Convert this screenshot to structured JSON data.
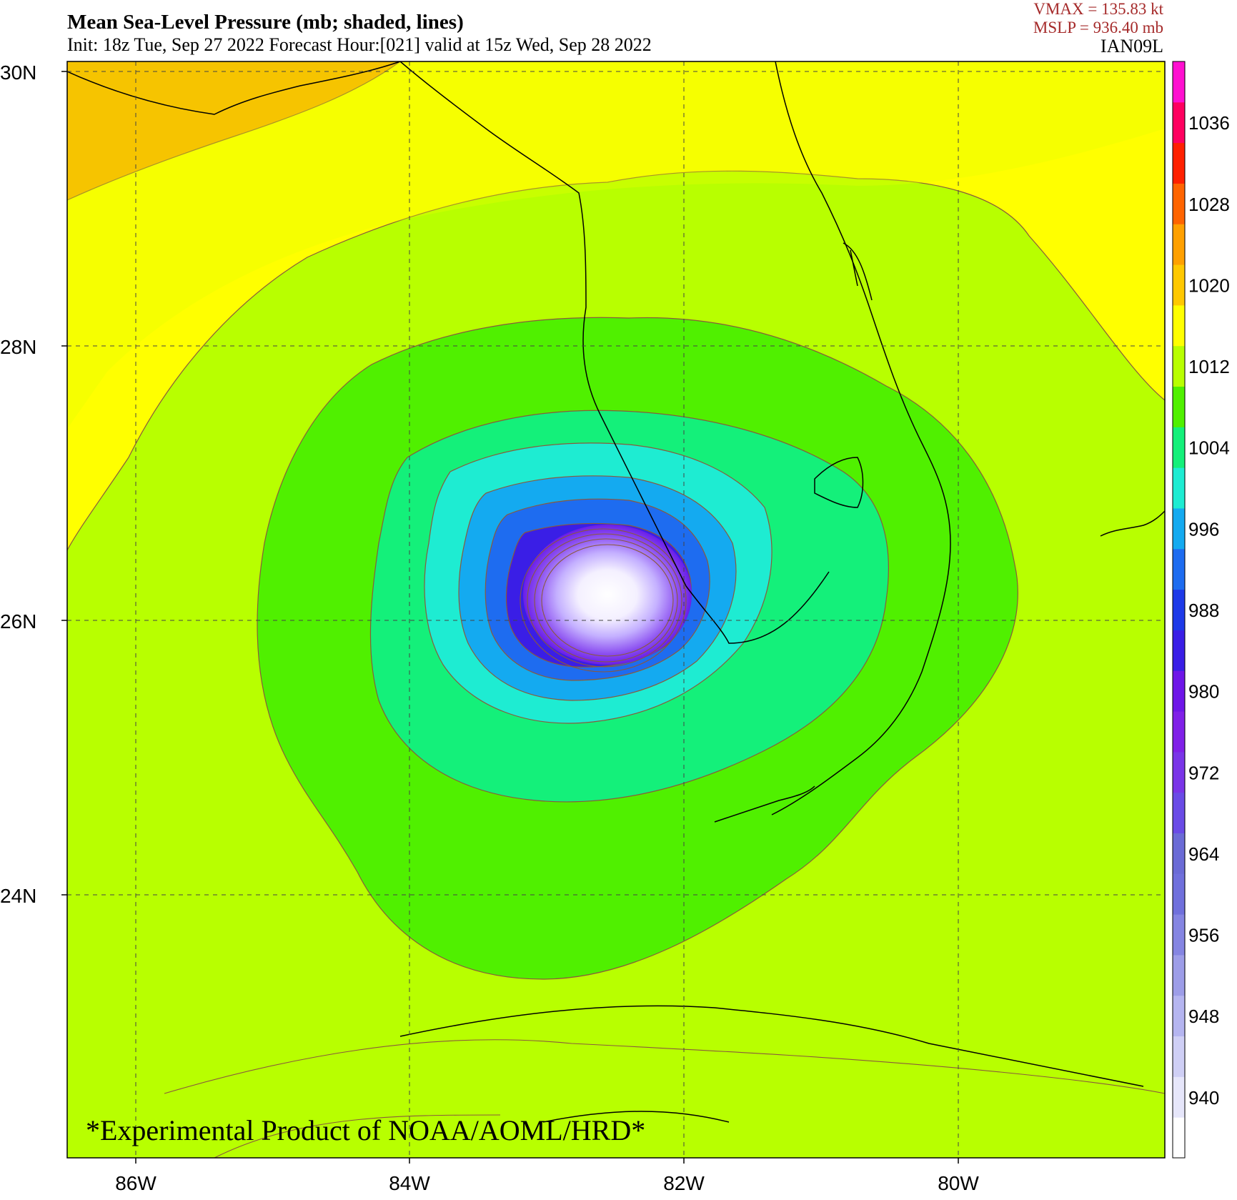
{
  "header": {
    "title": "Mean Sea-Level Pressure (mb; shaded, lines)",
    "subtitle": "Init: 18z Tue, Sep 27 2022  Forecast Hour:[021]  valid at 15z Wed, Sep 28 2022",
    "vmax": "VMAX =  135.83 kt",
    "mslp": "MSLP =  936.40 mb",
    "storm_id": "IAN09L"
  },
  "map": {
    "lat_labels": [
      "30N",
      "28N",
      "26N",
      "24N"
    ],
    "lon_labels": [
      "86W",
      "84W",
      "82W",
      "80W"
    ],
    "extent": {
      "lon_min": -86.5,
      "lon_max": -78.5,
      "lat_min": 22.0,
      "lat_max": 30.07
    },
    "storm_center": {
      "lon": -82.55,
      "lat": 26.0
    },
    "watermark": "*Experimental Product of NOAA/AOML/HRD*"
  },
  "colorbar": {
    "labels": [
      "940",
      "948",
      "956",
      "964",
      "972",
      "980",
      "988",
      "996",
      "1004",
      "1012",
      "1020",
      "1028",
      "1036"
    ],
    "levels": [
      936,
      940,
      944,
      948,
      952,
      956,
      960,
      964,
      968,
      972,
      976,
      980,
      984,
      988,
      992,
      996,
      1000,
      1004,
      1008,
      1012,
      1016,
      1020,
      1024,
      1028,
      1032,
      1036,
      1040
    ],
    "colors": [
      "#ffffff",
      "#e6e6fa",
      "#cfcff5",
      "#b5b5f0",
      "#9d9de8",
      "#8585e2",
      "#7070dc",
      "#6b6bd6",
      "#6a4be6",
      "#7a35e8",
      "#8020e8",
      "#6e16e8",
      "#3a1ee6",
      "#1e3ae8",
      "#1e6cf0",
      "#14aaf0",
      "#1eecd2",
      "#14f07a",
      "#50f000",
      "#b8ff00",
      "#ffff00",
      "#ffc800",
      "#ffa000",
      "#ff6400",
      "#ff2000",
      "#ff0060",
      "#ff10d0"
    ]
  },
  "colors": {
    "title_text": "#000000",
    "stats_text": "#a52a2a",
    "grid": "#444444",
    "contour": "#8a5a3c",
    "coastline": "#000000"
  }
}
